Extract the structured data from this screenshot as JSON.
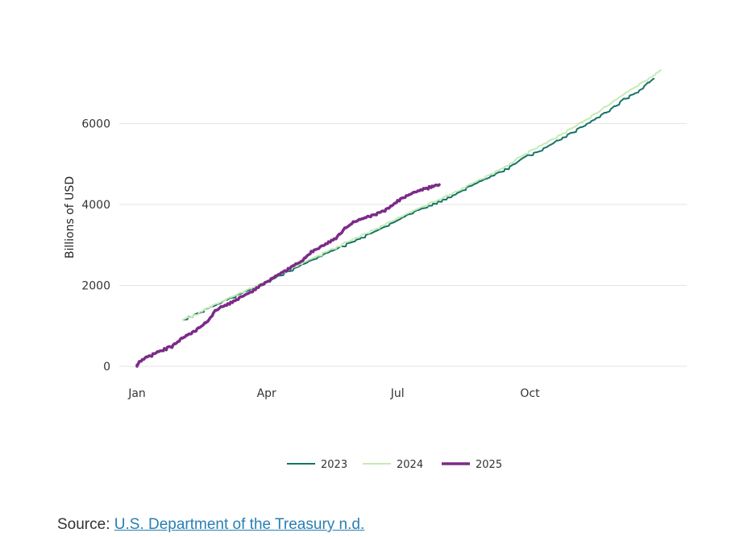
{
  "chart_data": {
    "type": "line",
    "ylabel": "Billions of USD",
    "xlabel": "",
    "title": "",
    "x_ticks": [
      {
        "label": "Jan",
        "day": 1
      },
      {
        "label": "Apr",
        "day": 91
      },
      {
        "label": "Jul",
        "day": 182
      },
      {
        "label": "Oct",
        "day": 274
      }
    ],
    "xlim": [
      1,
      365
    ],
    "ylim": [
      0,
      7300
    ],
    "y_ticks": [
      0,
      2000,
      4000,
      6000
    ],
    "grid": true,
    "legend_position": "bottom",
    "x_unit_note": "day of year",
    "series": [
      {
        "name": "2023",
        "color": "#137366",
        "width": 2,
        "x": [
          33,
          44,
          50,
          60,
          70,
          80,
          90,
          100,
          110,
          120,
          130,
          140,
          150,
          160,
          170,
          180,
          190,
          200,
          210,
          220,
          230,
          240,
          250,
          260,
          270,
          280,
          290,
          300,
          310,
          320,
          330,
          340,
          350,
          360
        ],
        "y": [
          1150,
          1300,
          1420,
          1580,
          1740,
          1900,
          2050,
          2230,
          2400,
          2580,
          2740,
          2900,
          3060,
          3220,
          3390,
          3560,
          3750,
          3900,
          4050,
          4200,
          4400,
          4570,
          4740,
          4910,
          5160,
          5300,
          5500,
          5700,
          5900,
          6120,
          6330,
          6600,
          6800,
          7100
        ]
      },
      {
        "name": "2024",
        "color": "#c6eab6",
        "width": 2,
        "x": [
          33,
          44,
          50,
          60,
          70,
          80,
          90,
          100,
          110,
          120,
          130,
          140,
          150,
          160,
          170,
          180,
          190,
          200,
          210,
          220,
          230,
          240,
          250,
          260,
          270,
          280,
          290,
          300,
          310,
          320,
          330,
          340,
          350,
          360,
          365
        ],
        "y": [
          1150,
          1300,
          1430,
          1600,
          1760,
          1920,
          2080,
          2260,
          2440,
          2620,
          2780,
          2940,
          3110,
          3280,
          3440,
          3610,
          3790,
          3950,
          4100,
          4260,
          4440,
          4620,
          4800,
          4990,
          5230,
          5420,
          5610,
          5810,
          6020,
          6240,
          6480,
          6740,
          6960,
          7180,
          7310
        ]
      },
      {
        "name": "2025",
        "color": "#7b2b87",
        "width": 3.5,
        "x": [
          1,
          3,
          8,
          14,
          20,
          26,
          31,
          36,
          41,
          46,
          50,
          56,
          62,
          68,
          74,
          80,
          86,
          92,
          98,
          104,
          110,
          116,
          122,
          128,
          134,
          140,
          146,
          152,
          158,
          164,
          170,
          176,
          182,
          188,
          194,
          200,
          206,
          211
        ],
        "y": [
          0,
          120,
          220,
          320,
          420,
          500,
          650,
          760,
          860,
          990,
          1100,
          1380,
          1500,
          1600,
          1720,
          1830,
          1970,
          2100,
          2230,
          2360,
          2480,
          2600,
          2820,
          2930,
          3060,
          3180,
          3410,
          3560,
          3640,
          3720,
          3800,
          3900,
          4080,
          4200,
          4300,
          4380,
          4440,
          4480
        ]
      }
    ]
  },
  "source": {
    "prefix": "Source: ",
    "link_text": "U.S. Department of the Treasury n.d."
  }
}
